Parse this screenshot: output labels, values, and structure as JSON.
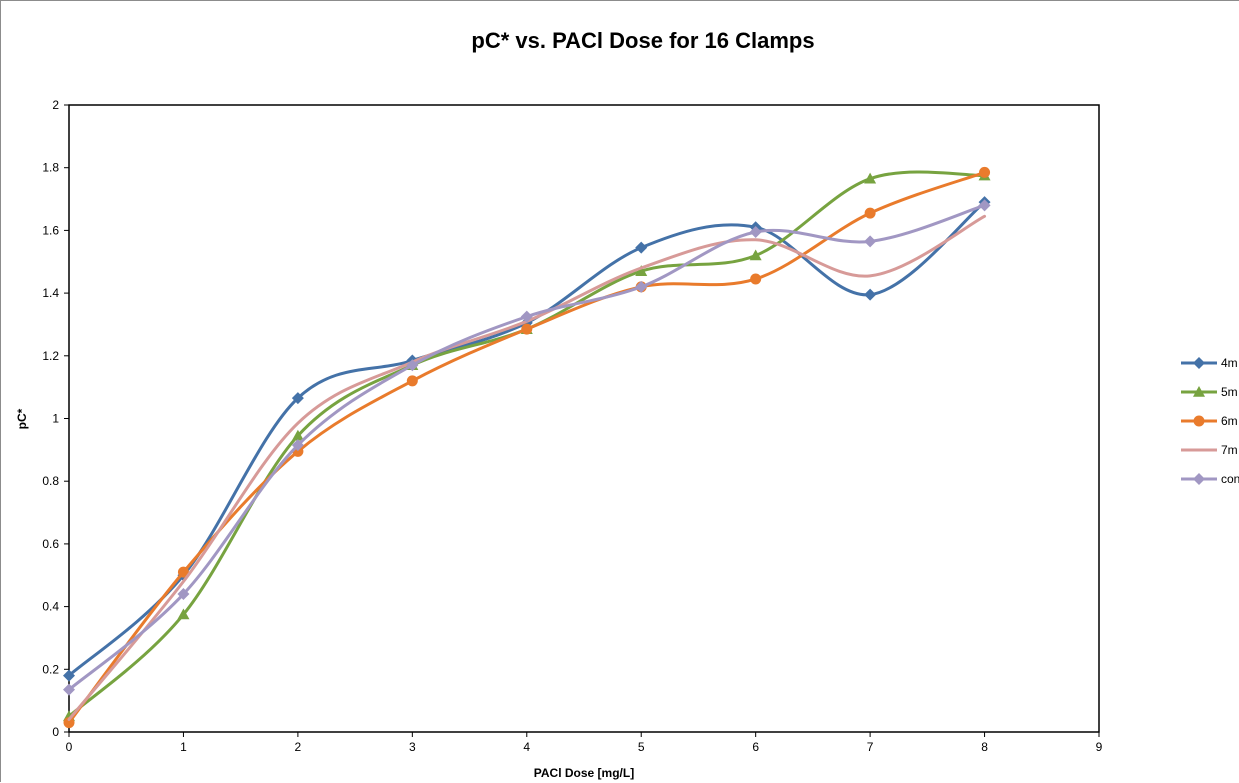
{
  "chart_data": {
    "type": "line",
    "title": "pC* vs. PACl Dose for 16 Clamps",
    "xlabel": "PACl Dose [mg/L]",
    "ylabel": "pC*",
    "xlim": [
      0,
      9
    ],
    "ylim": [
      0,
      2
    ],
    "x_ticks": [
      "0",
      "1",
      "2",
      "3",
      "4",
      "5",
      "6",
      "7",
      "8",
      "9"
    ],
    "y_ticks": [
      "0",
      "0.2",
      "0.4",
      "0.6",
      "0.8",
      "1",
      "1.2",
      "1.4",
      "1.6",
      "1.8",
      "2"
    ],
    "grid": false,
    "smooth": true,
    "legend_position": "right (partially cut off)",
    "series": [
      {
        "name": "4m",
        "color": "#4472a8",
        "marker": "diamond",
        "x": [
          0,
          1,
          2,
          3,
          4,
          5,
          6,
          7,
          8
        ],
        "y": [
          0.18,
          0.5,
          1.065,
          1.185,
          1.305,
          1.545,
          1.61,
          1.395,
          1.69
        ]
      },
      {
        "name": "5m",
        "color": "#77a340",
        "marker": "triangle",
        "x": [
          0,
          1,
          2,
          3,
          4,
          5,
          6,
          7,
          8
        ],
        "y": [
          0.05,
          0.375,
          0.945,
          1.17,
          1.285,
          1.47,
          1.52,
          1.765,
          1.775
        ]
      },
      {
        "name": "6m",
        "color": "#e97b2c",
        "marker": "circle",
        "x": [
          0,
          1,
          2,
          3,
          4,
          5,
          6,
          7,
          8
        ],
        "y": [
          0.03,
          0.51,
          0.895,
          1.12,
          1.285,
          1.42,
          1.445,
          1.655,
          1.785
        ]
      },
      {
        "name": "7m",
        "color": "#d79a98",
        "marker": "none",
        "x": [
          0,
          1,
          2,
          3,
          4,
          5,
          6,
          7,
          8
        ],
        "y": [
          0.04,
          0.48,
          0.985,
          1.18,
          1.31,
          1.48,
          1.57,
          1.455,
          1.645
        ]
      },
      {
        "name": "con",
        "color": "#a197c3",
        "marker": "diamond",
        "x": [
          0,
          1,
          2,
          3,
          4,
          5,
          6,
          7,
          8
        ],
        "y": [
          0.135,
          0.44,
          0.915,
          1.17,
          1.325,
          1.42,
          1.595,
          1.565,
          1.68
        ]
      }
    ]
  }
}
